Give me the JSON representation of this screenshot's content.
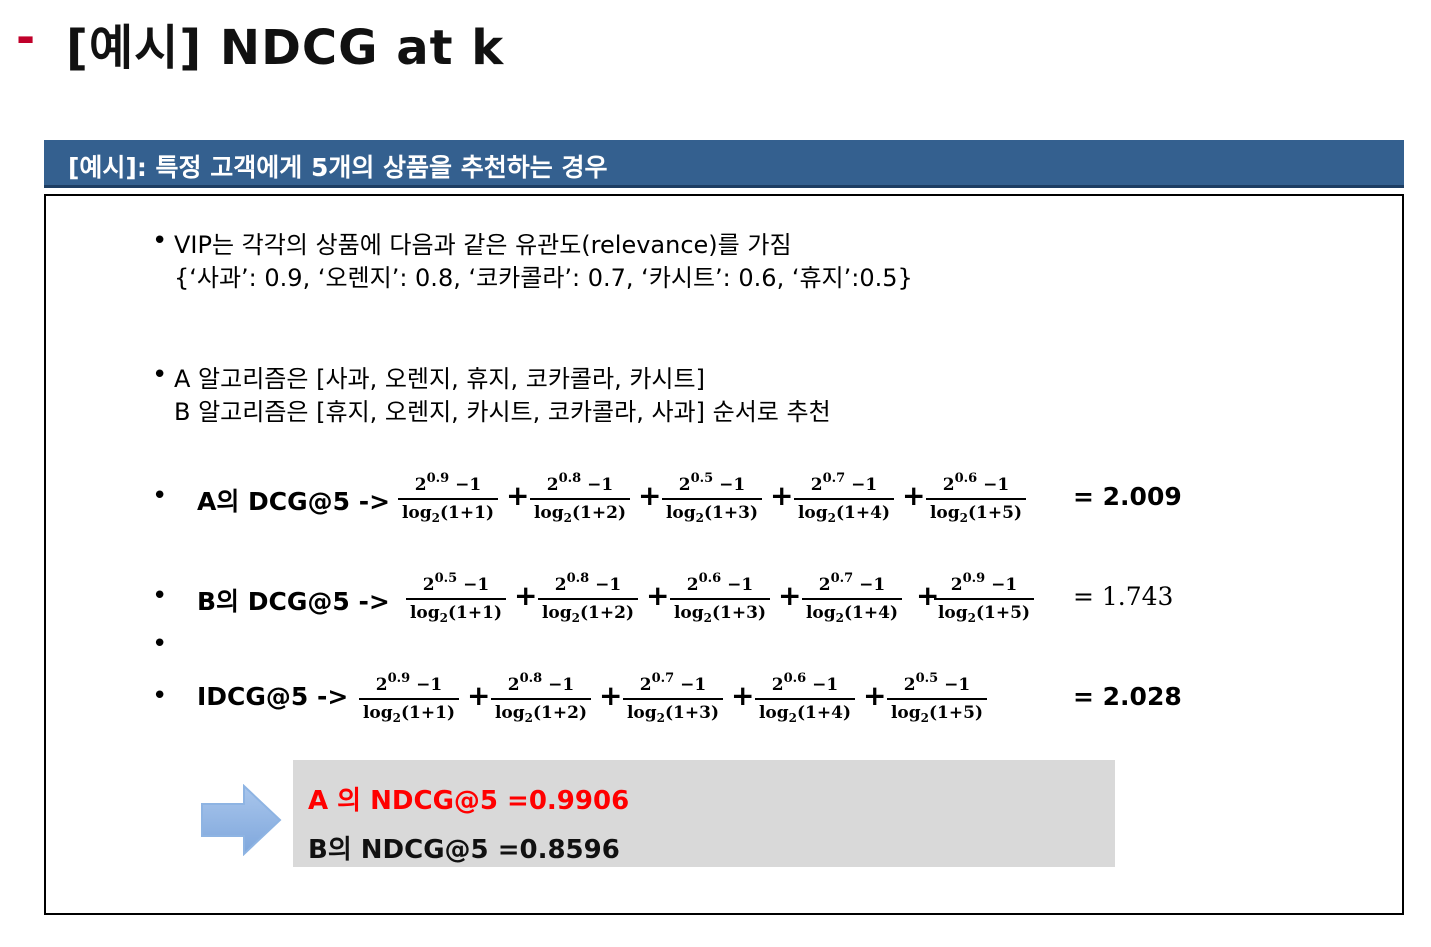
{
  "title": {
    "dash": "-",
    "text": "[예시] NDCG at k"
  },
  "header": {
    "text": "[예시]: 특정 고객에게 5개의 상품을 추천하는 경우"
  },
  "bullet_char": "•",
  "content": {
    "b1_line1": "VIP는 각각의 상품에 다음과 같은 유관도(relevance)를 가짐",
    "b1_line2": "{‘사과’: 0.9, ‘오렌지’: 0.8, ‘코카콜라’: 0.7, ‘카시트’: 0.6, ‘휴지’:0.5}",
    "b2_line1": "A 알고리즘은 [사과, 오렌지, 휴지, 코카콜라, 카시트]",
    "b2_line2": "B 알고리즘은 [휴지, 오렌지, 카시트, 코카콜라, 사과] 순서로 추천"
  },
  "math": {
    "base": "2",
    "minus": "−1",
    "log": "log",
    "log_sub": "2",
    "plus": "+"
  },
  "equations": [
    {
      "label": "A의 DCG@5 ->",
      "result": "= 2.009",
      "terms": [
        {
          "exp": "0.9",
          "den": "(1+1)"
        },
        {
          "exp": "0.8",
          "den": "(1+2)"
        },
        {
          "exp": "0.5",
          "den": "(1+3)"
        },
        {
          "exp": "0.7",
          "den": "(1+4)"
        },
        {
          "exp": "0.6",
          "den": "(1+5)"
        }
      ]
    },
    {
      "label": "B의 DCG@5 ->",
      "result": "= 1.743",
      "terms": [
        {
          "exp": "0.5",
          "den": "(1+1)"
        },
        {
          "exp": "0.8",
          "den": "(1+2)"
        },
        {
          "exp": "0.6",
          "den": "(1+3)"
        },
        {
          "exp": "0.7",
          "den": "(1+4)"
        },
        {
          "exp": "0.9",
          "den": "(1+5)"
        }
      ]
    },
    {
      "label": "IDCG@5 ->",
      "result": "= 2.028",
      "terms": [
        {
          "exp": "0.9",
          "den": "(1+1)"
        },
        {
          "exp": "0.8",
          "den": "(1+2)"
        },
        {
          "exp": "0.7",
          "den": "(1+3)"
        },
        {
          "exp": "0.6",
          "den": "(1+4)"
        },
        {
          "exp": "0.5",
          "den": "(1+5)"
        }
      ]
    }
  ],
  "ndcg": {
    "a": "A 의 NDCG@5 =0.9906",
    "b": "B의 NDCG@5 =0.8596",
    "a_color": "#ff0000"
  },
  "colors": {
    "header_bg": "#34608f",
    "title_dash": "#c0002a",
    "arrow": "#8eb4e3",
    "summary_bg": "#d9d9d9"
  },
  "icons": {
    "arrow": "right-arrow-icon"
  }
}
